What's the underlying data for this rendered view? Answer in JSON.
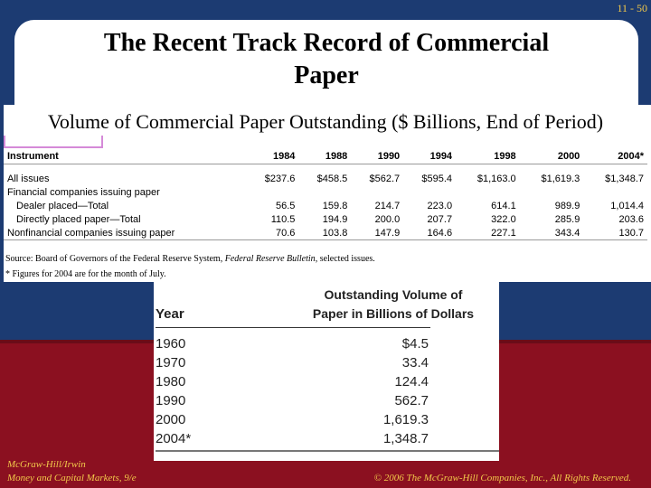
{
  "page_number": "11 - 50",
  "title": "The Recent Track Record of Commercial Paper",
  "subtitle": "Volume of Commercial Paper Outstanding ($ Billions, End of Period)",
  "table": {
    "headers": [
      "Instrument",
      "1984",
      "1988",
      "1990",
      "1994",
      "1998",
      "2000",
      "2004*"
    ],
    "rows": [
      {
        "label": "All issues",
        "values": [
          "$237.6",
          "$458.5",
          "$562.7",
          "$595.4",
          "$1,163.0",
          "$1,619.3",
          "$1,348.7"
        ]
      },
      {
        "label": "Financial companies issuing paper",
        "values": [
          "",
          "",
          "",
          "",
          "",
          "",
          ""
        ]
      },
      {
        "label": "Dealer placed—Total",
        "values": [
          "56.5",
          "159.8",
          "214.7",
          "223.0",
          "614.1",
          "989.9",
          "1,014.4"
        ]
      },
      {
        "label": "Directly placed paper—Total",
        "values": [
          "110.5",
          "194.9",
          "200.0",
          "207.7",
          "322.0",
          "285.9",
          "203.6"
        ]
      },
      {
        "label": "Nonfinancial companies issuing paper",
        "values": [
          "70.6",
          "103.8",
          "147.9",
          "164.6",
          "227.1",
          "343.4",
          "130.7"
        ]
      }
    ]
  },
  "source_note_prefix": "Source: Board of Governors of the Federal Reserve System, ",
  "source_note_italic": "Federal Reserve Bulletin",
  "source_note_suffix": ", selected issues.",
  "footnote": "* Figures for 2004 are for the month of July.",
  "lower_table": {
    "heading_line1": "Outstanding Volume of",
    "heading_line2": "Paper in Billions of Dollars",
    "year_header": "Year",
    "rows": [
      {
        "year": "1960",
        "amount": "$4.5"
      },
      {
        "year": "1970",
        "amount": "33.4"
      },
      {
        "year": "1980",
        "amount": "124.4"
      },
      {
        "year": "1990",
        "amount": "562.7"
      },
      {
        "year": "2000",
        "amount": "1,619.3"
      },
      {
        "year": "2004*",
        "amount": "1,348.7"
      }
    ]
  },
  "footer": {
    "publisher": "McGraw-Hill/Irwin",
    "book": "Money and Capital Markets, 9/e",
    "copyright": "© 2006 The McGraw-Hill Companies, Inc., All Rights Reserved."
  },
  "colors": {
    "background_blue": "#1c3b72",
    "background_red": "#8b1020",
    "accent_gold": "#f1c84a"
  }
}
